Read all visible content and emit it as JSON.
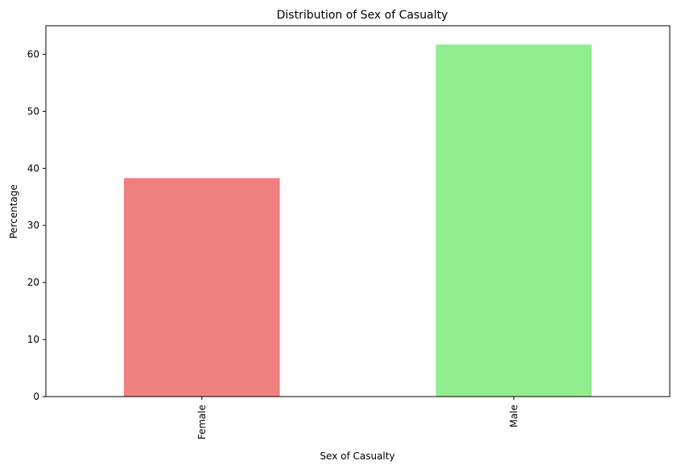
{
  "chart_data": {
    "type": "bar",
    "title": "Distribution of Sex of Casualty",
    "xlabel": "Sex of Casualty",
    "ylabel": "Percentage",
    "categories": [
      "Female",
      "Male"
    ],
    "values": [
      38.3,
      61.7
    ],
    "colors": [
      "#f08080",
      "#90ee90"
    ],
    "ylim": [
      0,
      65
    ],
    "yticks": [
      "0",
      "10",
      "20",
      "30",
      "40",
      "50",
      "60"
    ],
    "grid": false,
    "legend": "none"
  }
}
